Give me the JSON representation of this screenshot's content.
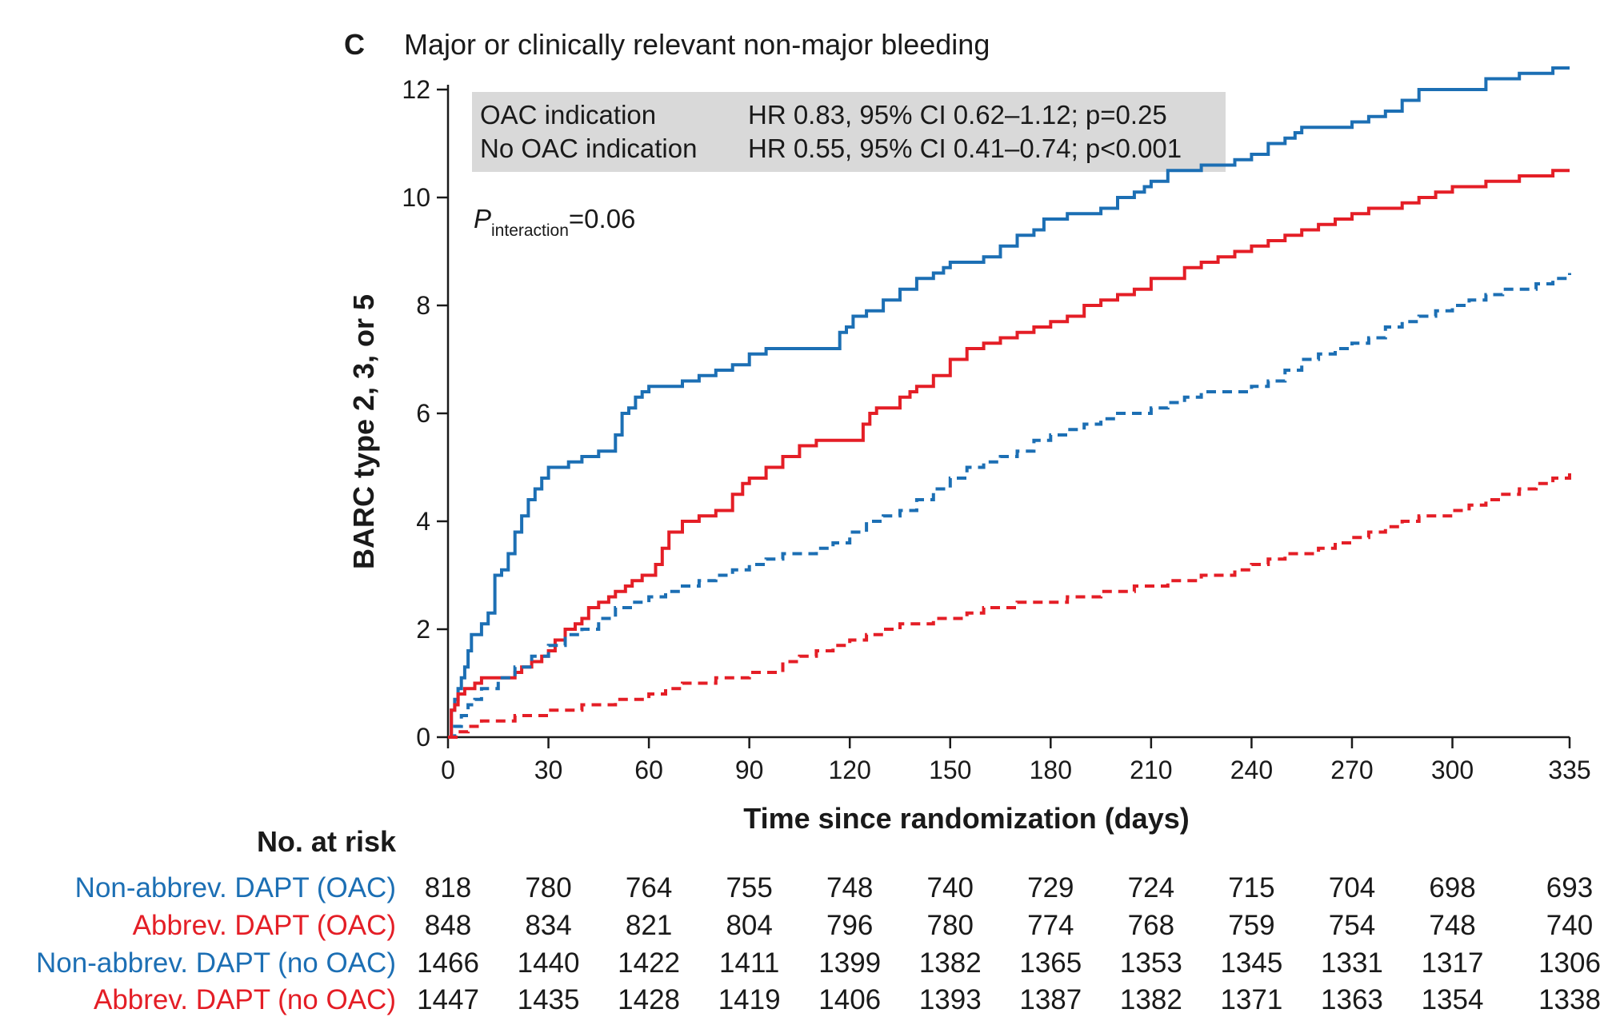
{
  "panel_label": "C",
  "title": "Major or clinically relevant non-major bleeding",
  "hr_box": {
    "rows": [
      {
        "label": "OAC indication",
        "stat": "HR 0.83, 95% CI 0.62–1.12; p=0.25"
      },
      {
        "label": "No OAC indication",
        "stat": "HR 0.55, 95% CI 0.41–0.74; p<0.001"
      }
    ]
  },
  "p_interaction": {
    "p": "P",
    "sub": "interaction",
    "value": "=0.06"
  },
  "risk_table": {
    "title": "No. at risk",
    "rows": [
      {
        "label": "Non-abbrev. DAPT (OAC)",
        "color": "#1c6fb4",
        "values": [
          "818",
          "780",
          "764",
          "755",
          "748",
          "740",
          "729",
          "724",
          "715",
          "704",
          "698",
          "693"
        ]
      },
      {
        "label": "Abbrev. DAPT (OAC)",
        "color": "#e41e26",
        "values": [
          "848",
          "834",
          "821",
          "804",
          "796",
          "780",
          "774",
          "768",
          "759",
          "754",
          "748",
          "740"
        ]
      },
      {
        "label": "Non-abbrev. DAPT (no OAC)",
        "color": "#1c6fb4",
        "values": [
          "1466",
          "1440",
          "1422",
          "1411",
          "1399",
          "1382",
          "1365",
          "1353",
          "1345",
          "1331",
          "1317",
          "1306"
        ]
      },
      {
        "label": "Abbrev. DAPT (no OAC)",
        "color": "#e41e26",
        "values": [
          "1447",
          "1435",
          "1428",
          "1419",
          "1406",
          "1393",
          "1387",
          "1382",
          "1371",
          "1363",
          "1354",
          "1338"
        ]
      }
    ]
  },
  "chart_data": {
    "type": "line",
    "step": true,
    "title": "Major or clinically relevant non-major bleeding",
    "xlabel": "Time since randomization (days)",
    "ylabel": "BARC type 2, 3, or 5",
    "xlim": [
      0,
      335
    ],
    "ylim": [
      0,
      12
    ],
    "xticks": [
      0,
      30,
      60,
      90,
      120,
      150,
      180,
      210,
      240,
      270,
      300,
      335
    ],
    "yticks": [
      0,
      2,
      4,
      6,
      8,
      10,
      12
    ],
    "grid": false,
    "series": [
      {
        "color": "#1c6fb4",
        "dash": false,
        "x": [
          0,
          1,
          2,
          3,
          4,
          5,
          6,
          7,
          8,
          10,
          12,
          14,
          16,
          18,
          20,
          22,
          24,
          26,
          28,
          30,
          33,
          36,
          40,
          45,
          50,
          52,
          54,
          56,
          58,
          60,
          62,
          65,
          70,
          75,
          80,
          85,
          90,
          95,
          100,
          110,
          117,
          119,
          121,
          123,
          125,
          130,
          135,
          140,
          145,
          148,
          150,
          153,
          156,
          160,
          165,
          170,
          175,
          178,
          180,
          185,
          190,
          195,
          200,
          205,
          208,
          210,
          213,
          215,
          220,
          225,
          235,
          240,
          245,
          250,
          253,
          255,
          260,
          265,
          268,
          270,
          275,
          280,
          285,
          290,
          300,
          310,
          320,
          330,
          335
        ],
        "y": [
          0,
          0.5,
          0.7,
          0.9,
          1.1,
          1.3,
          1.6,
          1.9,
          1.9,
          2.1,
          2.3,
          3.0,
          3.1,
          3.4,
          3.8,
          4.1,
          4.4,
          4.6,
          4.8,
          5.0,
          5.0,
          5.1,
          5.2,
          5.3,
          5.6,
          6.0,
          6.1,
          6.3,
          6.4,
          6.5,
          6.5,
          6.5,
          6.6,
          6.7,
          6.8,
          6.9,
          7.1,
          7.2,
          7.2,
          7.2,
          7.5,
          7.6,
          7.8,
          7.8,
          7.9,
          8.1,
          8.3,
          8.5,
          8.6,
          8.7,
          8.8,
          8.8,
          8.8,
          8.9,
          9.1,
          9.3,
          9.4,
          9.6,
          9.6,
          9.7,
          9.7,
          9.8,
          10.0,
          10.1,
          10.2,
          10.3,
          10.3,
          10.5,
          10.5,
          10.6,
          10.7,
          10.8,
          11.0,
          11.1,
          11.2,
          11.3,
          11.3,
          11.3,
          11.3,
          11.4,
          11.5,
          11.6,
          11.8,
          12.0,
          12.0,
          12.2,
          12.3,
          12.4,
          12.4
        ]
      },
      {
        "color": "#e41e26",
        "dash": false,
        "x": [
          0,
          1,
          2,
          3,
          5,
          8,
          10,
          15,
          20,
          22,
          25,
          28,
          30,
          32,
          35,
          38,
          40,
          42,
          45,
          48,
          50,
          53,
          55,
          58,
          60,
          62,
          64,
          66,
          70,
          75,
          80,
          85,
          88,
          90,
          95,
          100,
          105,
          110,
          115,
          120,
          122,
          124,
          126,
          128,
          130,
          135,
          138,
          140,
          145,
          150,
          155,
          160,
          165,
          170,
          175,
          180,
          185,
          190,
          195,
          200,
          205,
          210,
          220,
          225,
          230,
          235,
          240,
          245,
          250,
          255,
          260,
          265,
          270,
          275,
          280,
          285,
          290,
          295,
          300,
          305,
          310,
          320,
          325,
          330,
          335
        ],
        "y": [
          0,
          0.5,
          0.6,
          0.8,
          0.9,
          1.0,
          1.1,
          1.1,
          1.2,
          1.3,
          1.4,
          1.5,
          1.6,
          1.8,
          2.0,
          2.1,
          2.2,
          2.4,
          2.5,
          2.6,
          2.7,
          2.8,
          2.9,
          3.0,
          3.0,
          3.2,
          3.5,
          3.8,
          4.0,
          4.1,
          4.2,
          4.5,
          4.7,
          4.8,
          5.0,
          5.2,
          5.4,
          5.5,
          5.5,
          5.5,
          5.5,
          5.8,
          6.0,
          6.1,
          6.1,
          6.3,
          6.4,
          6.5,
          6.7,
          7.0,
          7.2,
          7.3,
          7.4,
          7.5,
          7.6,
          7.7,
          7.8,
          8.0,
          8.1,
          8.2,
          8.3,
          8.5,
          8.7,
          8.8,
          8.9,
          9.0,
          9.1,
          9.2,
          9.3,
          9.4,
          9.5,
          9.6,
          9.7,
          9.8,
          9.8,
          9.9,
          10.0,
          10.1,
          10.2,
          10.2,
          10.3,
          10.4,
          10.4,
          10.5,
          10.5
        ]
      },
      {
        "color": "#1c6fb4",
        "dash": true,
        "x": [
          0,
          2,
          4,
          6,
          8,
          10,
          15,
          20,
          25,
          30,
          35,
          40,
          45,
          50,
          55,
          60,
          65,
          70,
          75,
          80,
          85,
          90,
          95,
          100,
          105,
          110,
          115,
          120,
          125,
          130,
          135,
          140,
          145,
          150,
          155,
          160,
          165,
          170,
          175,
          180,
          185,
          190,
          195,
          200,
          205,
          210,
          215,
          220,
          225,
          230,
          235,
          240,
          245,
          250,
          255,
          260,
          265,
          270,
          275,
          280,
          285,
          290,
          295,
          300,
          305,
          310,
          315,
          320,
          325,
          330,
          335
        ],
        "y": [
          0,
          0.2,
          0.4,
          0.6,
          0.7,
          0.9,
          1.1,
          1.3,
          1.5,
          1.7,
          1.9,
          2.0,
          2.2,
          2.4,
          2.5,
          2.6,
          2.7,
          2.8,
          2.9,
          3.0,
          3.1,
          3.2,
          3.3,
          3.4,
          3.4,
          3.5,
          3.6,
          3.8,
          4.0,
          4.1,
          4.2,
          4.4,
          4.6,
          4.8,
          5.0,
          5.1,
          5.2,
          5.3,
          5.5,
          5.6,
          5.7,
          5.8,
          5.9,
          6.0,
          6.0,
          6.1,
          6.2,
          6.3,
          6.4,
          6.4,
          6.4,
          6.5,
          6.6,
          6.8,
          7.0,
          7.1,
          7.2,
          7.3,
          7.4,
          7.6,
          7.7,
          7.8,
          7.9,
          8.0,
          8.1,
          8.2,
          8.3,
          8.3,
          8.4,
          8.5,
          8.6
        ]
      },
      {
        "color": "#e41e26",
        "dash": true,
        "x": [
          0,
          3,
          6,
          10,
          15,
          20,
          25,
          30,
          35,
          40,
          45,
          50,
          55,
          60,
          65,
          70,
          75,
          80,
          85,
          90,
          95,
          100,
          105,
          110,
          115,
          120,
          125,
          130,
          135,
          140,
          145,
          150,
          155,
          160,
          165,
          170,
          175,
          180,
          185,
          190,
          195,
          200,
          205,
          210,
          215,
          220,
          225,
          230,
          235,
          240,
          245,
          250,
          255,
          260,
          265,
          270,
          275,
          280,
          285,
          290,
          295,
          300,
          305,
          310,
          315,
          320,
          325,
          330,
          335
        ],
        "y": [
          0,
          0.1,
          0.2,
          0.3,
          0.3,
          0.4,
          0.4,
          0.5,
          0.5,
          0.6,
          0.6,
          0.7,
          0.7,
          0.8,
          0.9,
          1.0,
          1.0,
          1.1,
          1.1,
          1.2,
          1.2,
          1.4,
          1.5,
          1.6,
          1.7,
          1.8,
          1.9,
          2.0,
          2.1,
          2.1,
          2.2,
          2.2,
          2.3,
          2.4,
          2.4,
          2.5,
          2.5,
          2.5,
          2.6,
          2.6,
          2.7,
          2.7,
          2.8,
          2.8,
          2.9,
          2.9,
          3.0,
          3.0,
          3.1,
          3.2,
          3.3,
          3.4,
          3.4,
          3.5,
          3.6,
          3.7,
          3.8,
          3.9,
          4.0,
          4.1,
          4.1,
          4.2,
          4.3,
          4.4,
          4.5,
          4.6,
          4.7,
          4.8,
          4.9
        ]
      }
    ]
  }
}
